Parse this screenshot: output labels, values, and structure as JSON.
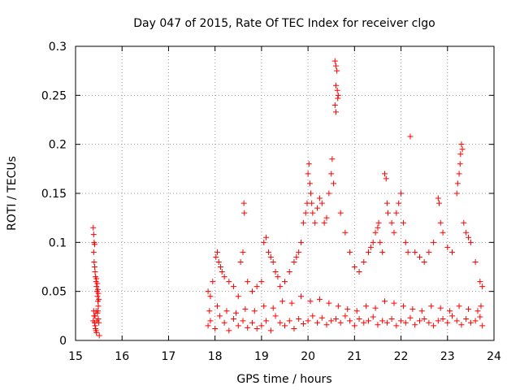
{
  "chart_data": {
    "type": "scatter",
    "title": "Day 047 of 2015, Rate Of TEC Index for receiver clgo",
    "xlabel": "GPS time / hours",
    "ylabel": "ROTI / TECUs",
    "xlim": [
      15,
      24
    ],
    "ylim": [
      0,
      0.3
    ],
    "x_ticks": [
      15,
      16,
      17,
      18,
      19,
      20,
      21,
      22,
      23,
      24
    ],
    "y_ticks": [
      0,
      0.05,
      0.1,
      0.15,
      0.2,
      0.25,
      0.3
    ],
    "x_tick_labels": [
      "15",
      "16",
      "17",
      "18",
      "19",
      "20",
      "21",
      "22",
      "23",
      "24"
    ],
    "y_tick_labels": [
      "0",
      "0.05",
      "0.1",
      "0.15",
      "0.2",
      "0.25",
      "0.3"
    ],
    "grid": true,
    "marker": "+",
    "marker_color": "#ff0000",
    "series": [
      {
        "name": "ROTI",
        "points": [
          [
            15.38,
            0.02
          ],
          [
            15.39,
            0.03
          ],
          [
            15.4,
            0.025
          ],
          [
            15.41,
            0.018
          ],
          [
            15.42,
            0.015
          ],
          [
            15.43,
            0.012
          ],
          [
            15.44,
            0.01
          ],
          [
            15.45,
            0.008
          ],
          [
            15.46,
            0.02
          ],
          [
            15.47,
            0.028
          ],
          [
            15.48,
            0.03
          ],
          [
            15.49,
            0.022
          ],
          [
            15.5,
            0.018
          ],
          [
            15.42,
            0.025
          ],
          [
            15.44,
            0.03
          ],
          [
            15.38,
            0.115
          ],
          [
            15.39,
            0.108
          ],
          [
            15.4,
            0.1
          ],
          [
            15.41,
            0.098
          ],
          [
            15.39,
            0.09
          ],
          [
            15.4,
            0.08
          ],
          [
            15.41,
            0.075
          ],
          [
            15.42,
            0.07
          ],
          [
            15.43,
            0.065
          ],
          [
            15.44,
            0.06
          ],
          [
            15.45,
            0.055
          ],
          [
            15.46,
            0.05
          ],
          [
            15.47,
            0.045
          ],
          [
            15.48,
            0.04
          ],
          [
            15.49,
            0.035
          ],
          [
            15.45,
            0.063
          ],
          [
            15.47,
            0.058
          ],
          [
            15.48,
            0.052
          ],
          [
            15.49,
            0.048
          ],
          [
            15.5,
            0.042
          ],
          [
            15.51,
            0.005
          ],
          [
            17.85,
            0.05
          ],
          [
            17.9,
            0.045
          ],
          [
            17.95,
            0.06
          ],
          [
            18.02,
            0.085
          ],
          [
            18.05,
            0.09
          ],
          [
            18.08,
            0.08
          ],
          [
            18.12,
            0.075
          ],
          [
            18.15,
            0.07
          ],
          [
            18.2,
            0.065
          ],
          [
            18.3,
            0.06
          ],
          [
            18.4,
            0.055
          ],
          [
            18.5,
            0.045
          ],
          [
            18.55,
            0.08
          ],
          [
            18.6,
            0.09
          ],
          [
            18.62,
            0.14
          ],
          [
            18.63,
            0.13
          ],
          [
            18.7,
            0.06
          ],
          [
            18.8,
            0.05
          ],
          [
            18.9,
            0.055
          ],
          [
            19.0,
            0.06
          ],
          [
            19.05,
            0.1
          ],
          [
            19.1,
            0.105
          ],
          [
            19.15,
            0.09
          ],
          [
            19.2,
            0.085
          ],
          [
            19.25,
            0.08
          ],
          [
            19.3,
            0.07
          ],
          [
            19.35,
            0.065
          ],
          [
            19.4,
            0.055
          ],
          [
            19.5,
            0.06
          ],
          [
            19.6,
            0.07
          ],
          [
            19.7,
            0.08
          ],
          [
            19.75,
            0.085
          ],
          [
            19.8,
            0.09
          ],
          [
            19.85,
            0.1
          ],
          [
            19.9,
            0.12
          ],
          [
            19.95,
            0.13
          ],
          [
            19.98,
            0.14
          ],
          [
            20.0,
            0.17
          ],
          [
            20.02,
            0.18
          ],
          [
            20.04,
            0.16
          ],
          [
            20.06,
            0.15
          ],
          [
            20.08,
            0.14
          ],
          [
            20.1,
            0.13
          ],
          [
            20.15,
            0.12
          ],
          [
            20.2,
            0.135
          ],
          [
            20.25,
            0.145
          ],
          [
            20.3,
            0.14
          ],
          [
            20.35,
            0.12
          ],
          [
            20.4,
            0.125
          ],
          [
            20.45,
            0.15
          ],
          [
            20.5,
            0.17
          ],
          [
            20.52,
            0.185
          ],
          [
            20.55,
            0.16
          ],
          [
            20.58,
            0.285
          ],
          [
            20.6,
            0.28
          ],
          [
            20.62,
            0.275
          ],
          [
            20.6,
            0.26
          ],
          [
            20.63,
            0.255
          ],
          [
            20.58,
            0.24
          ],
          [
            20.6,
            0.233
          ],
          [
            20.64,
            0.247
          ],
          [
            20.65,
            0.25
          ],
          [
            20.7,
            0.13
          ],
          [
            20.8,
            0.11
          ],
          [
            20.9,
            0.09
          ],
          [
            21.0,
            0.075
          ],
          [
            21.1,
            0.07
          ],
          [
            21.2,
            0.08
          ],
          [
            21.3,
            0.09
          ],
          [
            21.35,
            0.095
          ],
          [
            21.4,
            0.1
          ],
          [
            21.45,
            0.11
          ],
          [
            21.5,
            0.115
          ],
          [
            21.52,
            0.12
          ],
          [
            21.55,
            0.1
          ],
          [
            21.6,
            0.09
          ],
          [
            21.65,
            0.17
          ],
          [
            21.68,
            0.165
          ],
          [
            21.7,
            0.14
          ],
          [
            21.72,
            0.13
          ],
          [
            21.8,
            0.12
          ],
          [
            21.85,
            0.11
          ],
          [
            21.9,
            0.13
          ],
          [
            21.95,
            0.14
          ],
          [
            22.0,
            0.15
          ],
          [
            22.05,
            0.12
          ],
          [
            22.1,
            0.1
          ],
          [
            22.15,
            0.09
          ],
          [
            22.2,
            0.208
          ],
          [
            22.3,
            0.09
          ],
          [
            22.4,
            0.085
          ],
          [
            22.5,
            0.08
          ],
          [
            22.6,
            0.09
          ],
          [
            22.7,
            0.1
          ],
          [
            22.8,
            0.145
          ],
          [
            22.82,
            0.14
          ],
          [
            22.85,
            0.12
          ],
          [
            22.9,
            0.11
          ],
          [
            23.0,
            0.095
          ],
          [
            23.1,
            0.09
          ],
          [
            23.2,
            0.15
          ],
          [
            23.22,
            0.16
          ],
          [
            23.25,
            0.17
          ],
          [
            23.27,
            0.18
          ],
          [
            23.28,
            0.19
          ],
          [
            23.3,
            0.2
          ],
          [
            23.32,
            0.195
          ],
          [
            23.35,
            0.12
          ],
          [
            23.4,
            0.11
          ],
          [
            23.45,
            0.105
          ],
          [
            23.5,
            0.1
          ],
          [
            23.6,
            0.08
          ],
          [
            23.7,
            0.06
          ],
          [
            23.75,
            0.055
          ],
          [
            17.85,
            0.015
          ],
          [
            17.9,
            0.02
          ],
          [
            18.0,
            0.012
          ],
          [
            18.1,
            0.025
          ],
          [
            18.2,
            0.018
          ],
          [
            18.3,
            0.01
          ],
          [
            18.4,
            0.022
          ],
          [
            18.5,
            0.015
          ],
          [
            18.6,
            0.02
          ],
          [
            18.7,
            0.013
          ],
          [
            18.8,
            0.018
          ],
          [
            18.9,
            0.012
          ],
          [
            19.0,
            0.015
          ],
          [
            19.1,
            0.02
          ],
          [
            19.2,
            0.01
          ],
          [
            19.3,
            0.025
          ],
          [
            19.4,
            0.018
          ],
          [
            19.5,
            0.015
          ],
          [
            19.6,
            0.02
          ],
          [
            19.7,
            0.012
          ],
          [
            19.8,
            0.022
          ],
          [
            19.9,
            0.017
          ],
          [
            20.0,
            0.02
          ],
          [
            20.1,
            0.025
          ],
          [
            20.2,
            0.018
          ],
          [
            20.3,
            0.023
          ],
          [
            20.4,
            0.016
          ],
          [
            20.5,
            0.02
          ],
          [
            20.6,
            0.022
          ],
          [
            20.7,
            0.018
          ],
          [
            20.8,
            0.025
          ],
          [
            20.9,
            0.02
          ],
          [
            21.0,
            0.015
          ],
          [
            21.1,
            0.022
          ],
          [
            21.2,
            0.018
          ],
          [
            21.3,
            0.02
          ],
          [
            21.4,
            0.024
          ],
          [
            21.5,
            0.016
          ],
          [
            21.6,
            0.02
          ],
          [
            21.7,
            0.018
          ],
          [
            21.8,
            0.022
          ],
          [
            21.9,
            0.015
          ],
          [
            22.0,
            0.02
          ],
          [
            22.1,
            0.018
          ],
          [
            22.2,
            0.023
          ],
          [
            22.3,
            0.016
          ],
          [
            22.4,
            0.02
          ],
          [
            22.5,
            0.022
          ],
          [
            22.6,
            0.018
          ],
          [
            22.7,
            0.015
          ],
          [
            22.8,
            0.02
          ],
          [
            22.9,
            0.022
          ],
          [
            23.0,
            0.018
          ],
          [
            23.1,
            0.025
          ],
          [
            23.2,
            0.02
          ],
          [
            23.3,
            0.016
          ],
          [
            23.4,
            0.022
          ],
          [
            23.5,
            0.018
          ],
          [
            23.6,
            0.02
          ],
          [
            23.7,
            0.024
          ],
          [
            23.75,
            0.015
          ],
          [
            17.88,
            0.03
          ],
          [
            18.05,
            0.035
          ],
          [
            18.25,
            0.03
          ],
          [
            18.45,
            0.028
          ],
          [
            18.65,
            0.032
          ],
          [
            18.85,
            0.03
          ],
          [
            19.05,
            0.035
          ],
          [
            19.25,
            0.033
          ],
          [
            19.45,
            0.04
          ],
          [
            19.65,
            0.038
          ],
          [
            19.85,
            0.045
          ],
          [
            20.05,
            0.04
          ],
          [
            20.25,
            0.042
          ],
          [
            20.45,
            0.038
          ],
          [
            20.65,
            0.035
          ],
          [
            20.85,
            0.032
          ],
          [
            21.05,
            0.03
          ],
          [
            21.25,
            0.035
          ],
          [
            21.45,
            0.033
          ],
          [
            21.65,
            0.04
          ],
          [
            21.85,
            0.038
          ],
          [
            22.05,
            0.035
          ],
          [
            22.25,
            0.032
          ],
          [
            22.45,
            0.03
          ],
          [
            22.65,
            0.035
          ],
          [
            22.85,
            0.033
          ],
          [
            23.05,
            0.03
          ],
          [
            23.25,
            0.035
          ],
          [
            23.45,
            0.032
          ],
          [
            23.65,
            0.03
          ],
          [
            23.72,
            0.035
          ]
        ]
      }
    ]
  }
}
